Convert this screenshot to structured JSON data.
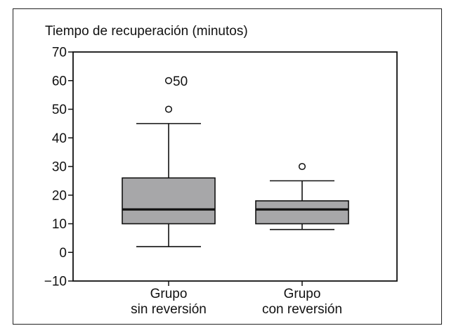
{
  "chart_data": {
    "type": "boxplot",
    "ylabel": "Tiempo de recuperación (minutos)",
    "ylim": [
      -10,
      70
    ],
    "yticks": [
      70,
      60,
      50,
      40,
      30,
      20,
      10,
      0,
      -10
    ],
    "ytick_labels": [
      "70",
      "60",
      "50",
      "40",
      "30",
      "20",
      "10",
      "0",
      "−10"
    ],
    "grid": false,
    "box_color": "#a7a7a9",
    "categories": [
      {
        "line1": "Grupo",
        "line2": "sin reversión"
      },
      {
        "line1": "Grupo",
        "line2": "con reversión"
      }
    ],
    "boxes": [
      {
        "whisker_low": 2,
        "q1": 10,
        "median": 15,
        "q3": 26,
        "whisker_high": 45,
        "outliers": [
          {
            "value": 60,
            "label": "50"
          },
          {
            "value": 50,
            "label": ""
          }
        ]
      },
      {
        "whisker_low": 8,
        "q1": 10,
        "median": 15,
        "q3": 18,
        "whisker_high": 25,
        "outliers": [
          {
            "value": 30,
            "label": ""
          }
        ]
      }
    ]
  }
}
